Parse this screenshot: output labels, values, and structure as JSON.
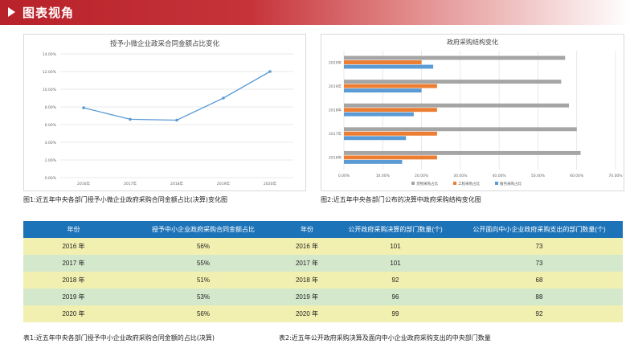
{
  "header": {
    "title": "图表视角"
  },
  "chart1": {
    "caption": "图1:近五年中央各部门授予小微企业政府采购合同金额占比(决算)变化图"
  },
  "chart2": {
    "caption": "图2:近五年中央各部门公布的决算中政府采购结构变化图"
  },
  "chart_data": [
    {
      "type": "line",
      "title": "授予小微企业政采合同金额占比变化",
      "x": [
        "2016年",
        "2017年",
        "2018年",
        "2019年",
        "2020年"
      ],
      "series": [
        {
          "values": [
            7.9,
            6.6,
            6.5,
            9.0,
            12.0
          ]
        }
      ],
      "yticks": [
        "0.00%",
        "2.00%",
        "4.00%",
        "6.00%",
        "8.00%",
        "10.00%",
        "12.00%",
        "14.00%"
      ],
      "ylim": [
        0,
        14
      ],
      "grid": true,
      "color": "#5b9bd5"
    },
    {
      "type": "bar",
      "orientation": "horizontal",
      "title": "政府采购结构变化",
      "categories": [
        "2020年",
        "2019年",
        "2018年",
        "2017年",
        "2016年"
      ],
      "series": [
        {
          "name": "货物采购占比",
          "color": "#a5a5a5",
          "values": [
            57.0,
            56.0,
            58.0,
            60.0,
            61.0
          ]
        },
        {
          "name": "工程采购占比",
          "color": "#ed7d31",
          "values": [
            20.0,
            24.0,
            24.0,
            24.0,
            24.0
          ]
        },
        {
          "name": "服务采购占比",
          "color": "#5b9bd5",
          "values": [
            23.0,
            20.0,
            18.0,
            16.0,
            15.0
          ]
        }
      ],
      "xticks": [
        "0.00%",
        "10.00%",
        "20.00%",
        "30.00%",
        "40.00%",
        "50.00%",
        "60.00%",
        "70.00%"
      ],
      "xlim": [
        0,
        70
      ],
      "grid": true,
      "legend": "bottom"
    }
  ],
  "table1": {
    "headers": [
      "年份",
      "授予中小企业政府采购合同金额占比"
    ],
    "rows": [
      [
        "2016 年",
        "56%"
      ],
      [
        "2017 年",
        "55%"
      ],
      [
        "2018 年",
        "51%"
      ],
      [
        "2019 年",
        "53%"
      ],
      [
        "2020 年",
        "56%"
      ]
    ],
    "caption": "表1:近五年中央各部门授予中小企业政府采购合同金额的占比(决算)"
  },
  "table2": {
    "headers": [
      "年份",
      "公开政府采购决算的部门数量(个)",
      "公开面向中小企业政府采购支出的部门数量(个)"
    ],
    "rows": [
      [
        "2016 年",
        "101",
        "73"
      ],
      [
        "2017 年",
        "101",
        "73"
      ],
      [
        "2018 年",
        "92",
        "68"
      ],
      [
        "2019 年",
        "96",
        "88"
      ],
      [
        "2020 年",
        "99",
        "92"
      ]
    ],
    "caption": "表2:近五年公开政府采购决算及面向中小企业政府采购支出的中央部门数量"
  }
}
